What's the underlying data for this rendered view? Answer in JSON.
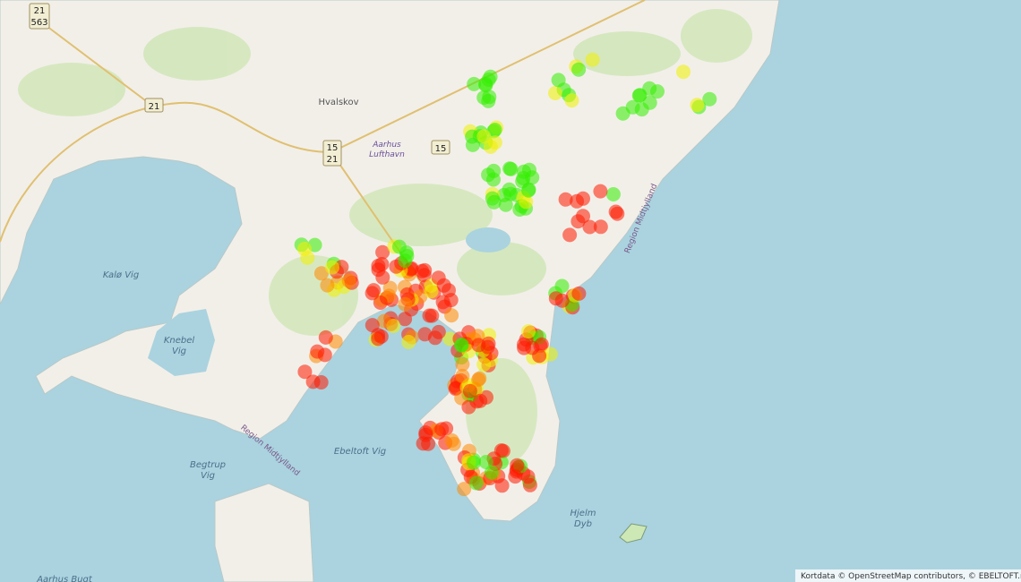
{
  "map": {
    "places": [
      "Hvalskov",
      "Kalø Vig",
      "Ebeltoft Vig",
      "Aarhus Bugt"
    ],
    "airport": [
      "Aarhus",
      "Lufthavn"
    ],
    "bays": {
      "knebel": [
        "Knebel",
        "Vig"
      ],
      "begtrup": [
        "Begtrup",
        "Vig"
      ],
      "hjelm": [
        "Hjelm",
        "Dyb"
      ]
    },
    "region": [
      "Region Midtjylland",
      "Region Midtjylland"
    ],
    "road_shields": [
      "21",
      "563",
      "21",
      "15",
      "21",
      "15"
    ],
    "attribution": "Kortdata © OpenStreetMap contributors, © EBELTOFT.net"
  }
}
